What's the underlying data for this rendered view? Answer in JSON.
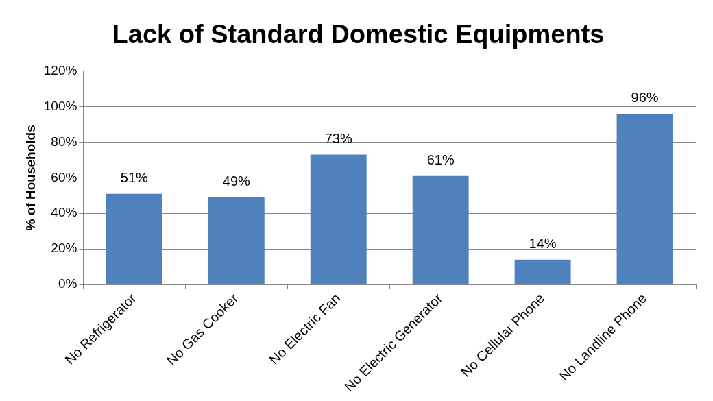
{
  "chart_data": {
    "type": "bar",
    "title": "Lack of Standard Domestic Equipments",
    "ylabel": "% of Households",
    "categories": [
      "No Refrigerator",
      "No Gas Cooker",
      "No Electric Fan",
      "No Electric Generator",
      "No Cellular Phone",
      "No Landline Phone"
    ],
    "values": [
      51,
      49,
      73,
      61,
      14,
      96
    ],
    "value_labels": [
      "51%",
      "49%",
      "73%",
      "61%",
      "14%",
      "96%"
    ],
    "color": "#4f81bd",
    "ylim": [
      0,
      120
    ],
    "yticks": [
      {
        "value": 0,
        "label": "0%"
      },
      {
        "value": 20,
        "label": "20%"
      },
      {
        "value": 40,
        "label": "40%"
      },
      {
        "value": 60,
        "label": "60%"
      },
      {
        "value": 80,
        "label": "80%"
      },
      {
        "value": 100,
        "label": "100%"
      },
      {
        "value": 120,
        "label": "120%"
      }
    ],
    "grid": "y"
  }
}
